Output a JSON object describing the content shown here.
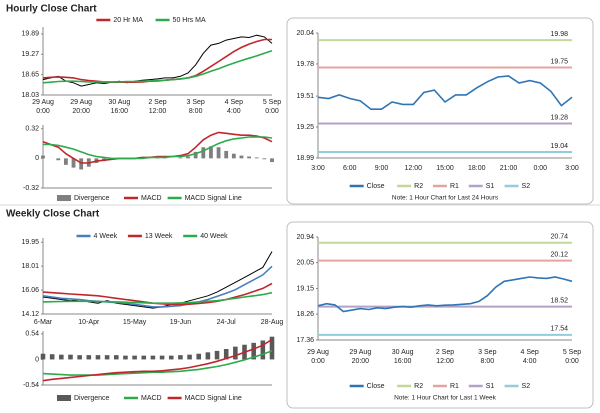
{
  "sections": [
    "Hourly Close Chart",
    "Weekly Close Chart"
  ],
  "chart_data": [
    {
      "type": "line",
      "categories": [
        [
          "29 Aug",
          "0:00"
        ],
        null,
        null,
        null,
        null,
        [
          "29 Aug",
          "20:00"
        ],
        null,
        null,
        null,
        null,
        [
          "30 Aug",
          "16:00"
        ],
        null,
        null,
        null,
        null,
        [
          "2 Sep",
          "12:00"
        ],
        null,
        null,
        null,
        null,
        [
          "3 Sep",
          "8:00"
        ],
        null,
        null,
        null,
        null,
        [
          "4 Sep",
          "4:00"
        ],
        null,
        null,
        null,
        null,
        [
          "5 Sep",
          "0:00"
        ]
      ],
      "ylim": [
        18.03,
        20.1
      ],
      "yticks": [
        18.03,
        18.65,
        19.27,
        19.89
      ],
      "series": [
        {
          "color": "#000000",
          "values": [
            18.5,
            18.55,
            18.6,
            18.45,
            18.4,
            18.3,
            18.35,
            18.4,
            18.38,
            18.42,
            18.45,
            18.4,
            18.45,
            18.48,
            18.5,
            18.52,
            18.55,
            18.55,
            18.6,
            18.7,
            18.95,
            19.3,
            19.55,
            19.6,
            19.7,
            19.75,
            19.8,
            19.78,
            19.85,
            19.8,
            19.6
          ]
        },
        {
          "name": "20 Hr MA",
          "color": "#c0272d",
          "values": [
            18.55,
            18.57,
            18.58,
            18.57,
            18.55,
            18.5,
            18.47,
            18.45,
            18.43,
            18.42,
            18.42,
            18.42,
            18.42,
            18.43,
            18.45,
            18.46,
            18.48,
            18.5,
            18.52,
            18.55,
            18.62,
            18.75,
            18.9,
            19.05,
            19.2,
            19.35,
            19.48,
            19.58,
            19.66,
            19.72,
            19.72
          ]
        },
        {
          "name": "50 Hrs MA",
          "color": "#2eaa4a",
          "values": [
            18.4,
            18.42,
            18.44,
            18.45,
            18.45,
            18.44,
            18.43,
            18.43,
            18.43,
            18.43,
            18.43,
            18.44,
            18.44,
            18.45,
            18.46,
            18.47,
            18.48,
            18.5,
            18.52,
            18.55,
            18.6,
            18.67,
            18.75,
            18.83,
            18.92,
            19.0,
            19.08,
            19.15,
            19.22,
            19.3,
            19.38
          ]
        }
      ]
    },
    {
      "type": "line",
      "ylim": [
        -0.32,
        0.36
      ],
      "yticks": [
        -0.32,
        0.0,
        0.32
      ],
      "series": [
        {
          "name": "Divergence",
          "type": "bar",
          "color": "#7f7f7f",
          "values": [
            0.03,
            0,
            -0.02,
            -0.07,
            -0.1,
            -0.12,
            -0.09,
            -0.05,
            -0.03,
            -0.01,
            0,
            0,
            0,
            0.01,
            0,
            0.01,
            0.01,
            0,
            0.01,
            0.02,
            0.07,
            0.12,
            0.13,
            0.12,
            0.08,
            0.05,
            0.03,
            0.02,
            0.01,
            -0.01,
            -0.04
          ]
        },
        {
          "name": "MACD",
          "color": "#c0272d",
          "values": [
            0.18,
            0.15,
            0.12,
            0.05,
            0.0,
            -0.05,
            -0.05,
            -0.03,
            -0.02,
            -0.01,
            0,
            0,
            0,
            0.01,
            0.01,
            0.02,
            0.02,
            0.02,
            0.03,
            0.05,
            0.12,
            0.2,
            0.25,
            0.28,
            0.27,
            0.26,
            0.25,
            0.25,
            0.24,
            0.22,
            0.18
          ]
        },
        {
          "name": "MACD Signal Line",
          "color": "#2eaa4a",
          "values": [
            0.15,
            0.15,
            0.14,
            0.12,
            0.1,
            0.07,
            0.04,
            0.02,
            0.01,
            0,
            0,
            0,
            0,
            0,
            0.01,
            0.01,
            0.01,
            0.02,
            0.02,
            0.03,
            0.05,
            0.08,
            0.12,
            0.16,
            0.19,
            0.21,
            0.22,
            0.23,
            0.23,
            0.23,
            0.22
          ]
        }
      ]
    },
    {
      "type": "line",
      "categories": [
        "3:00",
        null,
        null,
        "6:00",
        null,
        null,
        "9:00",
        null,
        null,
        "12:00",
        null,
        null,
        "15:00",
        null,
        null,
        "18:00",
        null,
        null,
        "21:00",
        null,
        null,
        "0:00",
        null,
        null,
        "3:00"
      ],
      "ylim": [
        18.99,
        20.04
      ],
      "yticks": [
        18.99,
        19.25,
        19.51,
        19.78,
        20.04
      ],
      "series": [
        {
          "name": "Close",
          "color": "#2e75b6",
          "values": [
            19.5,
            19.49,
            19.52,
            19.49,
            19.47,
            19.4,
            19.4,
            19.46,
            19.44,
            19.44,
            19.54,
            19.56,
            19.46,
            19.52,
            19.52,
            19.58,
            19.63,
            19.67,
            19.68,
            19.62,
            19.64,
            19.62,
            19.55,
            19.43,
            19.5
          ]
        }
      ],
      "levels": [
        {
          "name": "R2",
          "value": 19.98,
          "color": "#c4d79b"
        },
        {
          "name": "R1",
          "value": 19.75,
          "color": "#e6a3a3"
        },
        {
          "name": "S1",
          "value": 19.28,
          "color": "#b3a2c7"
        },
        {
          "name": "S2",
          "value": 19.04,
          "color": "#93cddd"
        }
      ],
      "note": "Note: 1 Hour Chart for Last 24 Hours"
    },
    {
      "type": "line",
      "categories": [
        "6-Mar",
        null,
        null,
        null,
        null,
        "10-Apr",
        null,
        null,
        null,
        null,
        "15-May",
        null,
        null,
        null,
        null,
        "19-Jun",
        null,
        null,
        null,
        null,
        "24-Jul",
        null,
        null,
        null,
        null,
        "28-Aug"
      ],
      "ylim": [
        14.12,
        20.3
      ],
      "yticks": [
        14.12,
        16.06,
        18.01,
        19.95
      ],
      "series": [
        {
          "color": "#000000",
          "values": [
            15.5,
            15.4,
            15.3,
            15.2,
            15.3,
            15.1,
            15.0,
            15.2,
            15.0,
            14.9,
            14.8,
            14.7,
            14.6,
            14.7,
            14.9,
            15.0,
            15.2,
            15.4,
            15.6,
            15.9,
            16.3,
            16.7,
            17.1,
            17.5,
            17.9,
            19.2
          ]
        },
        {
          "name": "4 Week",
          "color": "#4a7ebb",
          "values": [
            15.6,
            15.5,
            15.4,
            15.35,
            15.3,
            15.2,
            15.15,
            15.1,
            15.05,
            15.0,
            14.9,
            14.8,
            14.7,
            14.7,
            14.75,
            14.8,
            14.95,
            15.1,
            15.3,
            15.55,
            15.8,
            16.1,
            16.5,
            16.9,
            17.3,
            18.0
          ]
        },
        {
          "name": "13 Week",
          "color": "#c0272d",
          "values": [
            15.9,
            15.85,
            15.8,
            15.75,
            15.7,
            15.65,
            15.6,
            15.5,
            15.4,
            15.3,
            15.2,
            15.1,
            15.0,
            14.95,
            14.9,
            14.9,
            14.92,
            14.97,
            15.05,
            15.15,
            15.3,
            15.5,
            15.7,
            15.95,
            16.2,
            16.6
          ]
        },
        {
          "name": "40 Week",
          "color": "#2eaa4a",
          "values": [
            15.1,
            15.12,
            15.14,
            15.15,
            15.15,
            15.15,
            15.14,
            15.12,
            15.1,
            15.08,
            15.05,
            15.03,
            15.0,
            15.0,
            15.0,
            15.02,
            15.05,
            15.1,
            15.15,
            15.2,
            15.3,
            15.4,
            15.5,
            15.6,
            15.7,
            15.85
          ]
        }
      ]
    },
    {
      "type": "line",
      "ylim": [
        -0.54,
        0.6
      ],
      "yticks": [
        -0.54,
        0.0,
        0.54
      ],
      "series": [
        {
          "name": "Divergence",
          "type": "bar",
          "color": "#595959",
          "values": [
            0.12,
            0.11,
            0.1,
            0.1,
            0.09,
            0.09,
            0.09,
            0.09,
            0.09,
            0.08,
            0.08,
            0.08,
            0.08,
            0.08,
            0.08,
            0.09,
            0.1,
            0.12,
            0.15,
            0.18,
            0.22,
            0.27,
            0.31,
            0.35,
            0.4,
            0.48
          ]
        },
        {
          "name": "MACD",
          "color": "#2eaa4a",
          "values": [
            -0.3,
            -0.31,
            -0.32,
            -0.33,
            -0.33,
            -0.33,
            -0.33,
            -0.32,
            -0.31,
            -0.3,
            -0.29,
            -0.28,
            -0.27,
            -0.27,
            -0.26,
            -0.25,
            -0.23,
            -0.21,
            -0.18,
            -0.15,
            -0.11,
            -0.06,
            -0.01,
            0.05,
            0.11,
            0.18
          ]
        },
        {
          "name": "MACD Signal Line",
          "color": "#c0272d",
          "values": [
            -0.45,
            -0.42,
            -0.4,
            -0.38,
            -0.36,
            -0.34,
            -0.32,
            -0.3,
            -0.28,
            -0.27,
            -0.26,
            -0.25,
            -0.25,
            -0.24,
            -0.22,
            -0.2,
            -0.17,
            -0.13,
            -0.09,
            -0.04,
            0.02,
            0.08,
            0.15,
            0.22,
            0.3,
            0.42
          ]
        }
      ]
    },
    {
      "type": "line",
      "categories": [
        [
          "29 Aug",
          "0:00"
        ],
        null,
        null,
        null,
        null,
        [
          "29 Aug",
          "20:00"
        ],
        null,
        null,
        null,
        null,
        [
          "30 Aug",
          "16:00"
        ],
        null,
        null,
        null,
        null,
        [
          "2 Sep",
          "12:00"
        ],
        null,
        null,
        null,
        null,
        [
          "3 Sep",
          "8:00"
        ],
        null,
        null,
        null,
        null,
        [
          "4 Sep",
          "4:00"
        ],
        null,
        null,
        null,
        null,
        [
          "5 Sep",
          "0:00"
        ]
      ],
      "ylim": [
        17.36,
        20.94
      ],
      "yticks": [
        17.36,
        18.26,
        19.15,
        20.05,
        20.94
      ],
      "series": [
        {
          "name": "Close",
          "color": "#2e75b6",
          "values": [
            18.55,
            18.62,
            18.58,
            18.35,
            18.4,
            18.45,
            18.42,
            18.48,
            18.45,
            18.5,
            18.52,
            18.5,
            18.55,
            18.58,
            18.55,
            18.57,
            18.58,
            18.6,
            18.62,
            18.7,
            18.9,
            19.2,
            19.4,
            19.45,
            19.5,
            19.55,
            19.52,
            19.5,
            19.55,
            19.48,
            19.4
          ]
        }
      ],
      "levels": [
        {
          "name": "R2",
          "value": 20.74,
          "color": "#c4d79b"
        },
        {
          "name": "R1",
          "value": 20.12,
          "color": "#e6a3a3"
        },
        {
          "name": "S1",
          "value": 18.52,
          "color": "#b3a2c7"
        },
        {
          "name": "S2",
          "value": 17.54,
          "color": "#93cddd"
        }
      ],
      "note": "Note: 1 Hour Chart for Last 1 Week"
    }
  ]
}
